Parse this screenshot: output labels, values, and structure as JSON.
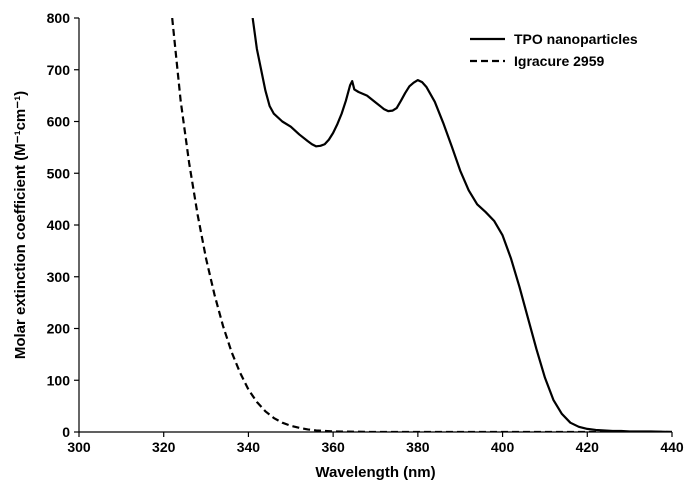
{
  "chart_data": {
    "type": "line",
    "title": "",
    "xlabel": "Wavelength (nm)",
    "ylabel": "Molar extinction coefficient (M⁻¹cm⁻¹)",
    "xlim": [
      300,
      440
    ],
    "ylim": [
      0,
      800
    ],
    "xticks": [
      "300",
      "320",
      "340",
      "360",
      "380",
      "400",
      "420",
      "440"
    ],
    "yticks": [
      "0",
      "100",
      "200",
      "300",
      "400",
      "500",
      "600",
      "700",
      "800"
    ],
    "grid": false,
    "legend_position": "top-right",
    "series": [
      {
        "name": "TPO nanoparticles",
        "style": "solid",
        "color": "#000000",
        "x": [
          341,
          341.5,
          342,
          343,
          344,
          345,
          346,
          348,
          350,
          352,
          354,
          355,
          356,
          357,
          358,
          359,
          360,
          361,
          362,
          363,
          364,
          364.5,
          365,
          366,
          368,
          370,
          372,
          373,
          374,
          375,
          376,
          377,
          378,
          379,
          380,
          381,
          382,
          384,
          386,
          388,
          390,
          392,
          394,
          396,
          398,
          400,
          402,
          404,
          406,
          408,
          410,
          412,
          414,
          416,
          418,
          420,
          422,
          424,
          426,
          428,
          430,
          435,
          440
        ],
        "y": [
          800,
          770,
          740,
          700,
          660,
          630,
          615,
          600,
          590,
          575,
          562,
          556,
          552,
          553,
          556,
          565,
          578,
          595,
          615,
          640,
          670,
          678,
          662,
          657,
          650,
          637,
          624,
          620,
          621,
          626,
          640,
          655,
          668,
          675,
          680,
          676,
          667,
          638,
          597,
          552,
          505,
          467,
          440,
          425,
          408,
          380,
          335,
          280,
          220,
          160,
          105,
          62,
          35,
          18,
          10,
          6,
          4,
          3,
          2,
          2,
          1,
          1,
          0
        ]
      },
      {
        "name": "Igracure 2959",
        "style": "dashed",
        "color": "#000000",
        "x": [
          322,
          324,
          326,
          328,
          330,
          332,
          334,
          336,
          338,
          340,
          342,
          344,
          346,
          348,
          350,
          352,
          354,
          356,
          358,
          360,
          365,
          370,
          380,
          400,
          420,
          440
        ],
        "y": [
          800,
          640,
          520,
          420,
          335,
          265,
          205,
          155,
          115,
          82,
          58,
          40,
          27,
          18,
          12,
          8,
          5,
          3,
          2,
          1,
          0.5,
          0,
          0,
          0,
          0,
          0
        ]
      }
    ]
  }
}
